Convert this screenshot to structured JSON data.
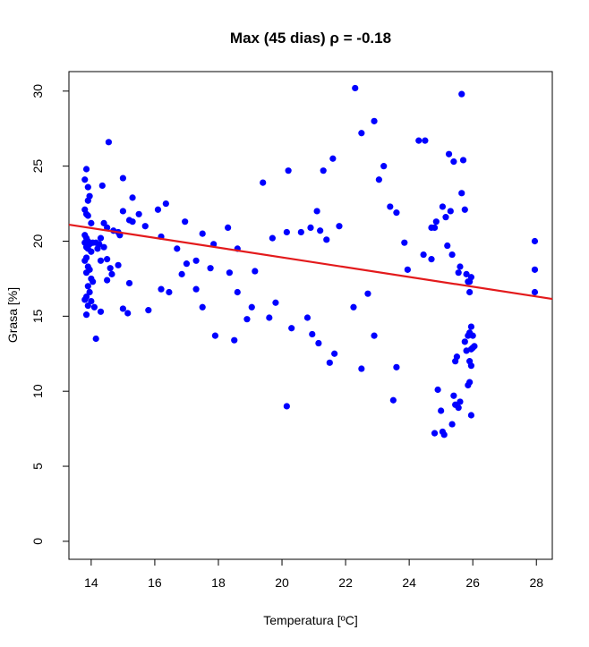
{
  "chart_data": {
    "type": "scatter",
    "title": "Max (45 dias)   ρ = -0.18",
    "xlabel": "Temperatura [ºC]",
    "ylabel": "Grasa [%]",
    "xlim": [
      13.3,
      28.5
    ],
    "ylim": [
      -1.2,
      31.3
    ],
    "xticks": [
      14,
      16,
      18,
      20,
      22,
      24,
      26,
      28
    ],
    "yticks": [
      0,
      5,
      10,
      15,
      20,
      25,
      30
    ],
    "grid": false,
    "point_color": "#0000ff",
    "line_color": "#e31a1c",
    "trend_line": {
      "x": [
        13.3,
        28.5
      ],
      "y": [
        21.1,
        16.15
      ]
    },
    "series": [
      {
        "points": [
          [
            13.8,
            24.1
          ],
          [
            13.85,
            24.8
          ],
          [
            13.9,
            23.6
          ],
          [
            13.95,
            23.0
          ],
          [
            13.9,
            22.7
          ],
          [
            13.8,
            22.1
          ],
          [
            13.85,
            21.8
          ],
          [
            13.9,
            21.7
          ],
          [
            14.0,
            21.2
          ],
          [
            13.8,
            20.4
          ],
          [
            13.85,
            20.2
          ],
          [
            13.9,
            20.0
          ],
          [
            13.8,
            19.9
          ],
          [
            13.95,
            19.8
          ],
          [
            14.05,
            19.9
          ],
          [
            14.15,
            19.9
          ],
          [
            14.25,
            19.8
          ],
          [
            13.85,
            19.6
          ],
          [
            13.9,
            19.5
          ],
          [
            14.0,
            19.3
          ],
          [
            13.85,
            18.9
          ],
          [
            13.8,
            18.7
          ],
          [
            13.9,
            18.3
          ],
          [
            13.95,
            18.1
          ],
          [
            13.85,
            17.9
          ],
          [
            14.0,
            17.5
          ],
          [
            14.05,
            17.3
          ],
          [
            13.9,
            17.0
          ],
          [
            13.95,
            16.6
          ],
          [
            13.8,
            16.1
          ],
          [
            13.85,
            16.3
          ],
          [
            14.0,
            16.0
          ],
          [
            13.9,
            15.7
          ],
          [
            14.1,
            15.6
          ],
          [
            13.85,
            15.1
          ],
          [
            14.3,
            15.3
          ],
          [
            14.15,
            13.5
          ],
          [
            14.35,
            23.7
          ],
          [
            14.4,
            21.2
          ],
          [
            14.5,
            20.9
          ],
          [
            14.3,
            20.2
          ],
          [
            14.4,
            19.6
          ],
          [
            14.2,
            19.5
          ],
          [
            14.3,
            18.7
          ],
          [
            14.5,
            18.8
          ],
          [
            14.6,
            18.2
          ],
          [
            14.5,
            17.4
          ],
          [
            14.65,
            17.8
          ],
          [
            14.7,
            20.7
          ],
          [
            14.85,
            20.6
          ],
          [
            14.9,
            20.4
          ],
          [
            14.85,
            18.4
          ],
          [
            14.55,
            26.6
          ],
          [
            15.0,
            24.2
          ],
          [
            15.0,
            22.0
          ],
          [
            15.2,
            21.4
          ],
          [
            15.3,
            21.3
          ],
          [
            15.3,
            22.9
          ],
          [
            15.5,
            21.8
          ],
          [
            15.7,
            21.0
          ],
          [
            15.2,
            17.2
          ],
          [
            15.0,
            15.5
          ],
          [
            15.15,
            15.2
          ],
          [
            15.8,
            15.4
          ],
          [
            16.1,
            22.1
          ],
          [
            16.35,
            22.5
          ],
          [
            16.2,
            20.3
          ],
          [
            16.7,
            19.5
          ],
          [
            16.85,
            17.8
          ],
          [
            16.2,
            16.8
          ],
          [
            16.45,
            16.6
          ],
          [
            16.95,
            21.3
          ],
          [
            17.5,
            20.5
          ],
          [
            17.0,
            18.5
          ],
          [
            17.3,
            18.7
          ],
          [
            17.3,
            16.8
          ],
          [
            17.5,
            15.6
          ],
          [
            17.75,
            18.2
          ],
          [
            17.85,
            19.8
          ],
          [
            17.9,
            13.7
          ],
          [
            18.3,
            20.9
          ],
          [
            18.35,
            17.9
          ],
          [
            18.5,
            13.4
          ],
          [
            18.6,
            16.6
          ],
          [
            18.6,
            19.5
          ],
          [
            18.9,
            14.8
          ],
          [
            19.05,
            15.6
          ],
          [
            19.15,
            18.0
          ],
          [
            19.4,
            23.9
          ],
          [
            19.6,
            14.9
          ],
          [
            19.7,
            20.2
          ],
          [
            19.8,
            15.9
          ],
          [
            20.15,
            20.6
          ],
          [
            20.2,
            24.7
          ],
          [
            20.3,
            14.2
          ],
          [
            20.15,
            9.0
          ],
          [
            20.6,
            20.6
          ],
          [
            20.8,
            14.9
          ],
          [
            20.9,
            20.9
          ],
          [
            20.95,
            13.8
          ],
          [
            21.1,
            22.0
          ],
          [
            21.15,
            13.2
          ],
          [
            21.2,
            20.7
          ],
          [
            21.3,
            24.7
          ],
          [
            21.4,
            20.1
          ],
          [
            21.5,
            11.9
          ],
          [
            21.6,
            25.5
          ],
          [
            21.65,
            12.5
          ],
          [
            21.8,
            21.0
          ],
          [
            22.3,
            30.2
          ],
          [
            22.25,
            15.6
          ],
          [
            22.5,
            27.2
          ],
          [
            22.5,
            11.5
          ],
          [
            22.7,
            16.5
          ],
          [
            22.9,
            28.0
          ],
          [
            22.9,
            13.7
          ],
          [
            23.05,
            24.1
          ],
          [
            23.2,
            25.0
          ],
          [
            23.4,
            22.3
          ],
          [
            23.6,
            21.9
          ],
          [
            23.5,
            9.4
          ],
          [
            23.6,
            11.6
          ],
          [
            23.85,
            19.9
          ],
          [
            23.95,
            18.1
          ],
          [
            24.3,
            26.7
          ],
          [
            24.5,
            26.7
          ],
          [
            24.45,
            19.1
          ],
          [
            24.7,
            18.8
          ],
          [
            24.7,
            20.9
          ],
          [
            24.8,
            20.9
          ],
          [
            24.85,
            21.3
          ],
          [
            24.8,
            7.2
          ],
          [
            24.9,
            10.1
          ],
          [
            25.0,
            8.7
          ],
          [
            25.05,
            7.3
          ],
          [
            25.1,
            7.1
          ],
          [
            25.05,
            22.3
          ],
          [
            25.15,
            21.6
          ],
          [
            25.2,
            19.7
          ],
          [
            25.25,
            25.8
          ],
          [
            25.3,
            22.0
          ],
          [
            25.35,
            7.8
          ],
          [
            25.4,
            9.7
          ],
          [
            25.45,
            9.1
          ],
          [
            25.35,
            19.1
          ],
          [
            25.4,
            25.3
          ],
          [
            25.45,
            12.0
          ],
          [
            25.5,
            12.3
          ],
          [
            25.55,
            8.9
          ],
          [
            25.6,
            9.3
          ],
          [
            25.55,
            17.9
          ],
          [
            25.6,
            18.3
          ],
          [
            25.65,
            23.2
          ],
          [
            25.7,
            25.4
          ],
          [
            25.65,
            29.8
          ],
          [
            25.75,
            22.1
          ],
          [
            25.8,
            17.8
          ],
          [
            25.85,
            17.3
          ],
          [
            25.75,
            13.3
          ],
          [
            25.8,
            12.7
          ],
          [
            25.85,
            13.7
          ],
          [
            25.9,
            16.6
          ],
          [
            25.9,
            17.3
          ],
          [
            25.95,
            17.6
          ],
          [
            25.95,
            14.3
          ],
          [
            25.9,
            13.9
          ],
          [
            25.95,
            12.8
          ],
          [
            26.0,
            13.7
          ],
          [
            25.9,
            12.0
          ],
          [
            25.95,
            11.7
          ],
          [
            25.9,
            10.6
          ],
          [
            25.85,
            10.4
          ],
          [
            25.95,
            8.4
          ],
          [
            26.0,
            12.9
          ],
          [
            26.05,
            13.0
          ],
          [
            27.95,
            20.0
          ],
          [
            27.95,
            18.1
          ],
          [
            27.95,
            16.6
          ]
        ]
      }
    ]
  }
}
